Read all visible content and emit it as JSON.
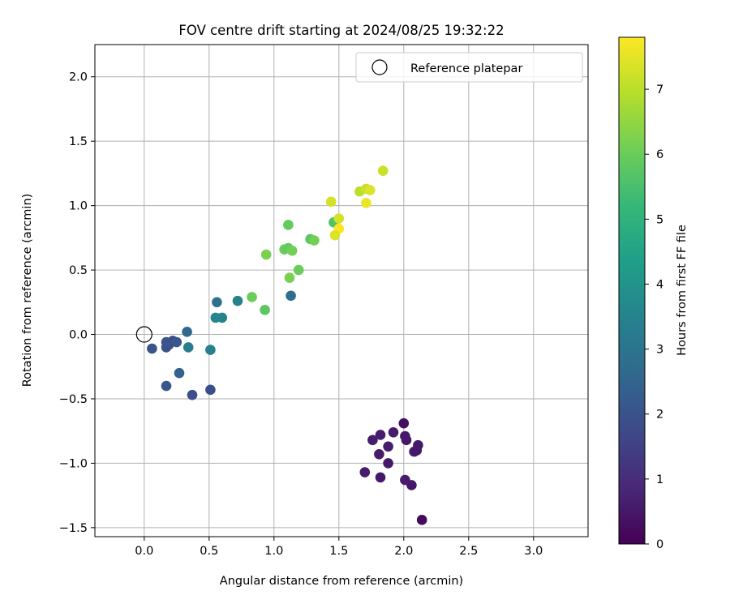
{
  "chart_data": {
    "type": "scatter",
    "title": "FOV centre drift starting at 2024/08/25 19:32:22",
    "xlabel": "Angular distance from reference (arcmin)",
    "ylabel": "Rotation from reference (arcmin)",
    "xlim": [
      -0.38,
      3.42
    ],
    "ylim": [
      -1.57,
      2.25
    ],
    "xticks": [
      0.0,
      0.5,
      1.0,
      1.5,
      2.0,
      2.5,
      3.0
    ],
    "yticks": [
      -1.5,
      -1.0,
      -0.5,
      0.0,
      0.5,
      1.0,
      1.5,
      2.0
    ],
    "grid": true,
    "legend": {
      "position": "top-right",
      "entries": [
        "Reference platepar"
      ]
    },
    "reference_point": {
      "x": 0.0,
      "y": 0.0
    },
    "colorbar": {
      "label": "Hours from first FF file",
      "min": 0.0,
      "max": 7.8,
      "ticks": [
        0,
        1,
        2,
        3,
        4,
        5,
        6,
        7
      ],
      "colormap": "viridis",
      "colormap_stops": [
        "#440154",
        "#482878",
        "#3e4989",
        "#31688e",
        "#26828e",
        "#1f9e89",
        "#35b779",
        "#6ece58",
        "#b5de2b",
        "#fde725"
      ]
    },
    "points": [
      {
        "x": 2.14,
        "y": -1.44,
        "h": 0.2
      },
      {
        "x": 2.0,
        "y": -0.69,
        "h": 0.3
      },
      {
        "x": 2.06,
        "y": -1.17,
        "h": 0.5
      },
      {
        "x": 2.01,
        "y": -1.13,
        "h": 0.6
      },
      {
        "x": 1.82,
        "y": -1.11,
        "h": 0.5
      },
      {
        "x": 1.7,
        "y": -1.07,
        "h": 0.6
      },
      {
        "x": 1.88,
        "y": -1.0,
        "h": 0.5
      },
      {
        "x": 2.08,
        "y": -0.91,
        "h": 0.6
      },
      {
        "x": 2.1,
        "y": -0.9,
        "h": 0.5
      },
      {
        "x": 1.81,
        "y": -0.93,
        "h": 0.6
      },
      {
        "x": 1.88,
        "y": -0.87,
        "h": 0.6
      },
      {
        "x": 2.11,
        "y": -0.86,
        "h": 0.5
      },
      {
        "x": 2.02,
        "y": -0.82,
        "h": 0.5
      },
      {
        "x": 1.76,
        "y": -0.82,
        "h": 0.6
      },
      {
        "x": 2.01,
        "y": -0.79,
        "h": 0.5
      },
      {
        "x": 1.82,
        "y": -0.78,
        "h": 0.6
      },
      {
        "x": 1.92,
        "y": -0.76,
        "h": 0.6
      },
      {
        "x": 0.06,
        "y": -0.11,
        "h": 2.0
      },
      {
        "x": 0.17,
        "y": -0.1,
        "h": 2.0
      },
      {
        "x": 0.19,
        "y": -0.08,
        "h": 1.9
      },
      {
        "x": 0.22,
        "y": -0.05,
        "h": 1.8
      },
      {
        "x": 0.17,
        "y": -0.06,
        "h": 2.0
      },
      {
        "x": 0.25,
        "y": -0.06,
        "h": 2.1
      },
      {
        "x": 0.27,
        "y": -0.3,
        "h": 2.4
      },
      {
        "x": 0.17,
        "y": -0.4,
        "h": 2.1
      },
      {
        "x": 0.37,
        "y": -0.47,
        "h": 1.9
      },
      {
        "x": 0.51,
        "y": -0.43,
        "h": 1.9
      },
      {
        "x": 0.33,
        "y": 0.02,
        "h": 2.6
      },
      {
        "x": 0.34,
        "y": -0.1,
        "h": 3.3
      },
      {
        "x": 0.51,
        "y": -0.12,
        "h": 3.4
      },
      {
        "x": 0.56,
        "y": 0.25,
        "h": 2.9
      },
      {
        "x": 0.55,
        "y": 0.13,
        "h": 3.6
      },
      {
        "x": 0.6,
        "y": 0.13,
        "h": 3.5
      },
      {
        "x": 0.72,
        "y": 0.26,
        "h": 3.5
      },
      {
        "x": 1.13,
        "y": 0.3,
        "h": 2.8
      },
      {
        "x": 0.83,
        "y": 0.29,
        "h": 6.0
      },
      {
        "x": 0.93,
        "y": 0.19,
        "h": 5.8
      },
      {
        "x": 0.94,
        "y": 0.62,
        "h": 6.2
      },
      {
        "x": 1.08,
        "y": 0.66,
        "h": 6.0
      },
      {
        "x": 1.11,
        "y": 0.67,
        "h": 5.9
      },
      {
        "x": 1.14,
        "y": 0.65,
        "h": 6.1
      },
      {
        "x": 1.11,
        "y": 0.85,
        "h": 5.9
      },
      {
        "x": 1.19,
        "y": 0.5,
        "h": 6.0
      },
      {
        "x": 1.12,
        "y": 0.44,
        "h": 6.2
      },
      {
        "x": 1.28,
        "y": 0.74,
        "h": 5.8
      },
      {
        "x": 1.31,
        "y": 0.73,
        "h": 6.1
      },
      {
        "x": 1.46,
        "y": 0.87,
        "h": 5.6
      },
      {
        "x": 1.5,
        "y": 0.9,
        "h": 7.3
      },
      {
        "x": 1.5,
        "y": 0.82,
        "h": 7.8
      },
      {
        "x": 1.47,
        "y": 0.77,
        "h": 7.4
      },
      {
        "x": 1.44,
        "y": 1.03,
        "h": 7.3
      },
      {
        "x": 1.66,
        "y": 1.11,
        "h": 7.0
      },
      {
        "x": 1.71,
        "y": 1.13,
        "h": 7.2
      },
      {
        "x": 1.74,
        "y": 1.12,
        "h": 7.4
      },
      {
        "x": 1.71,
        "y": 1.02,
        "h": 7.6
      },
      {
        "x": 1.84,
        "y": 1.27,
        "h": 7.2
      }
    ]
  }
}
